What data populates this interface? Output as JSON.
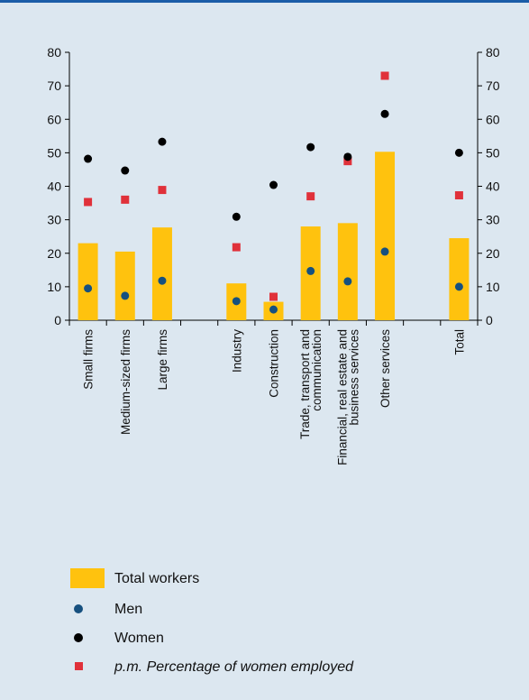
{
  "chart_data": {
    "type": "bar",
    "categories": [
      "Small firms",
      "Medium-sized firms",
      "Large firms",
      "",
      "Industry",
      "Construction",
      "Trade, transport and communication",
      "Financial, real estate and business services",
      "Other services",
      "",
      "Total"
    ],
    "category_lines": [
      [
        "Small firms"
      ],
      [
        "Medium-sized firms"
      ],
      [
        "Large firms"
      ],
      [],
      [
        "Industry"
      ],
      [
        "Construction"
      ],
      [
        "Trade, transport and",
        "communication"
      ],
      [
        "Financial, real estate and",
        "business services"
      ],
      [
        "Other services"
      ],
      [],
      [
        "Total"
      ]
    ],
    "series": [
      {
        "name": "Total workers",
        "type": "bar",
        "values": [
          23,
          20.5,
          27.7,
          null,
          11,
          5.5,
          28,
          29,
          50.3,
          null,
          24.5
        ]
      },
      {
        "name": "Men",
        "type": "scatter",
        "values": [
          9.5,
          7.3,
          11.8,
          null,
          5.7,
          3.2,
          14.7,
          11.6,
          20.5,
          null,
          10
        ]
      },
      {
        "name": "Women",
        "type": "scatter",
        "values": [
          48.2,
          44.7,
          53.3,
          null,
          30.9,
          40.4,
          51.7,
          48.8,
          61.6,
          null,
          50
        ]
      },
      {
        "name": "p.m. Percentage of women employed",
        "type": "scatter",
        "values": [
          35.3,
          36,
          38.9,
          null,
          21.8,
          7,
          37,
          47.5,
          73,
          null,
          37.3
        ]
      }
    ],
    "ylim": [
      0,
      80
    ],
    "yticks": [
      0,
      10,
      20,
      30,
      40,
      50,
      60,
      70,
      80
    ],
    "xlabel": "",
    "ylabel": "",
    "legend_position": "bottom-left"
  },
  "colors": {
    "background": "#dce7f0",
    "bar": "#ffc20e",
    "men": "#16507f",
    "women": "#000000",
    "pm": "#e0313a",
    "top_rule": "#1b5da8"
  },
  "legend": {
    "total": "Total workers",
    "men": "Men",
    "women": "Women",
    "pm": "p.m. Percentage of women employed"
  }
}
